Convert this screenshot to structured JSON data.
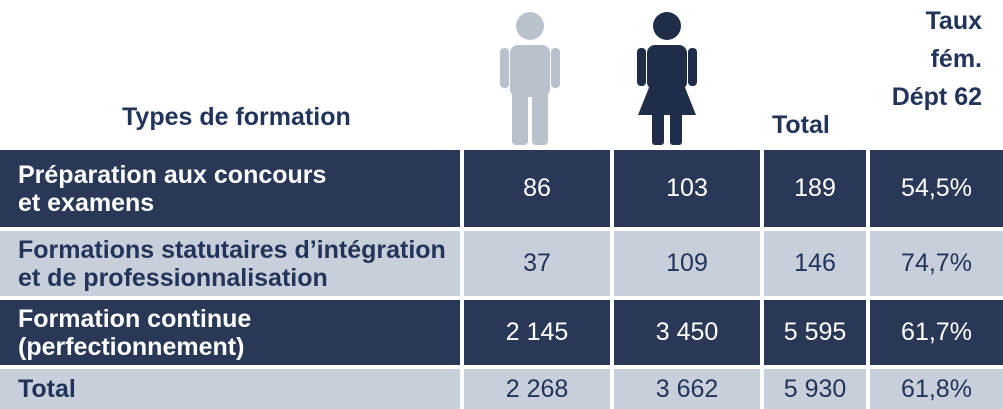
{
  "header": {
    "title": "Types de formation",
    "total": "Total",
    "rate": [
      "Taux",
      "fém.",
      "Dépt 62"
    ]
  },
  "table": {
    "rows": [
      {
        "label": [
          "Préparation aux concours",
          "et examens"
        ],
        "cells": [
          "86",
          "103",
          "189",
          "54,5%"
        ]
      },
      {
        "label": [
          "Formations statutaires d’intégration",
          "et de professionnalisation"
        ],
        "cells": [
          "37",
          "109",
          "146",
          "74,7%"
        ]
      },
      {
        "label": [
          "Formation continue",
          "(perfectionnement)"
        ],
        "cells": [
          "2 145",
          "3 450",
          "5 595",
          "61,7%"
        ]
      },
      {
        "label": [
          "Total"
        ],
        "cells": [
          "2 268",
          "3 662",
          "5 930",
          "61,8%"
        ]
      }
    ]
  }
}
